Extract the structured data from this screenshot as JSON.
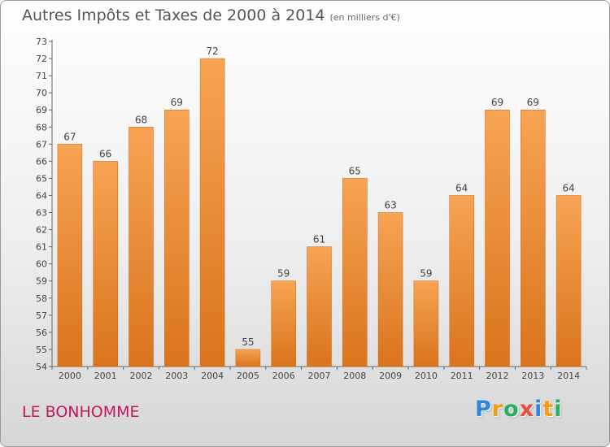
{
  "header": {
    "title": "Autres Impôts et Taxes de 2000 à 2014",
    "subtitle": "(en milliers d'€)"
  },
  "footer": {
    "location": "LE BONHOMME",
    "logo": {
      "text": "Proxiti",
      "letters": [
        {
          "char": "P",
          "color": "#2e86de"
        },
        {
          "char": "r",
          "color": "#f39c12"
        },
        {
          "char": "o",
          "color": "#27ae60"
        },
        {
          "char": "x",
          "color": "#e74c3c"
        },
        {
          "char": "i",
          "color": "#2e86de"
        },
        {
          "char": "t",
          "color": "#f39c12"
        },
        {
          "char": "i",
          "color": "#27ae60"
        }
      ]
    }
  },
  "chart_data": {
    "type": "bar",
    "title": "Autres Impôts et Taxes de 2000 à 2014",
    "subtitle": "(en milliers d'€)",
    "xlabel": "",
    "ylabel": "",
    "categories": [
      "2000",
      "2001",
      "2002",
      "2003",
      "2004",
      "2005",
      "2006",
      "2007",
      "2008",
      "2009",
      "2010",
      "2011",
      "2012",
      "2013",
      "2014"
    ],
    "values": [
      67,
      66,
      68,
      69,
      72,
      55,
      59,
      61,
      65,
      63,
      59,
      64,
      69,
      69,
      64
    ],
    "ylim": [
      54,
      73
    ],
    "yticks": [
      54,
      55,
      56,
      57,
      58,
      59,
      60,
      61,
      62,
      63,
      64,
      65,
      66,
      67,
      68,
      69,
      70,
      71,
      72,
      73
    ],
    "grid": false,
    "legend": "none",
    "colors": {
      "bar_light": "#f7a454",
      "bar_dark": "#d9741c",
      "axis": "#666666",
      "label": "#444444"
    }
  }
}
